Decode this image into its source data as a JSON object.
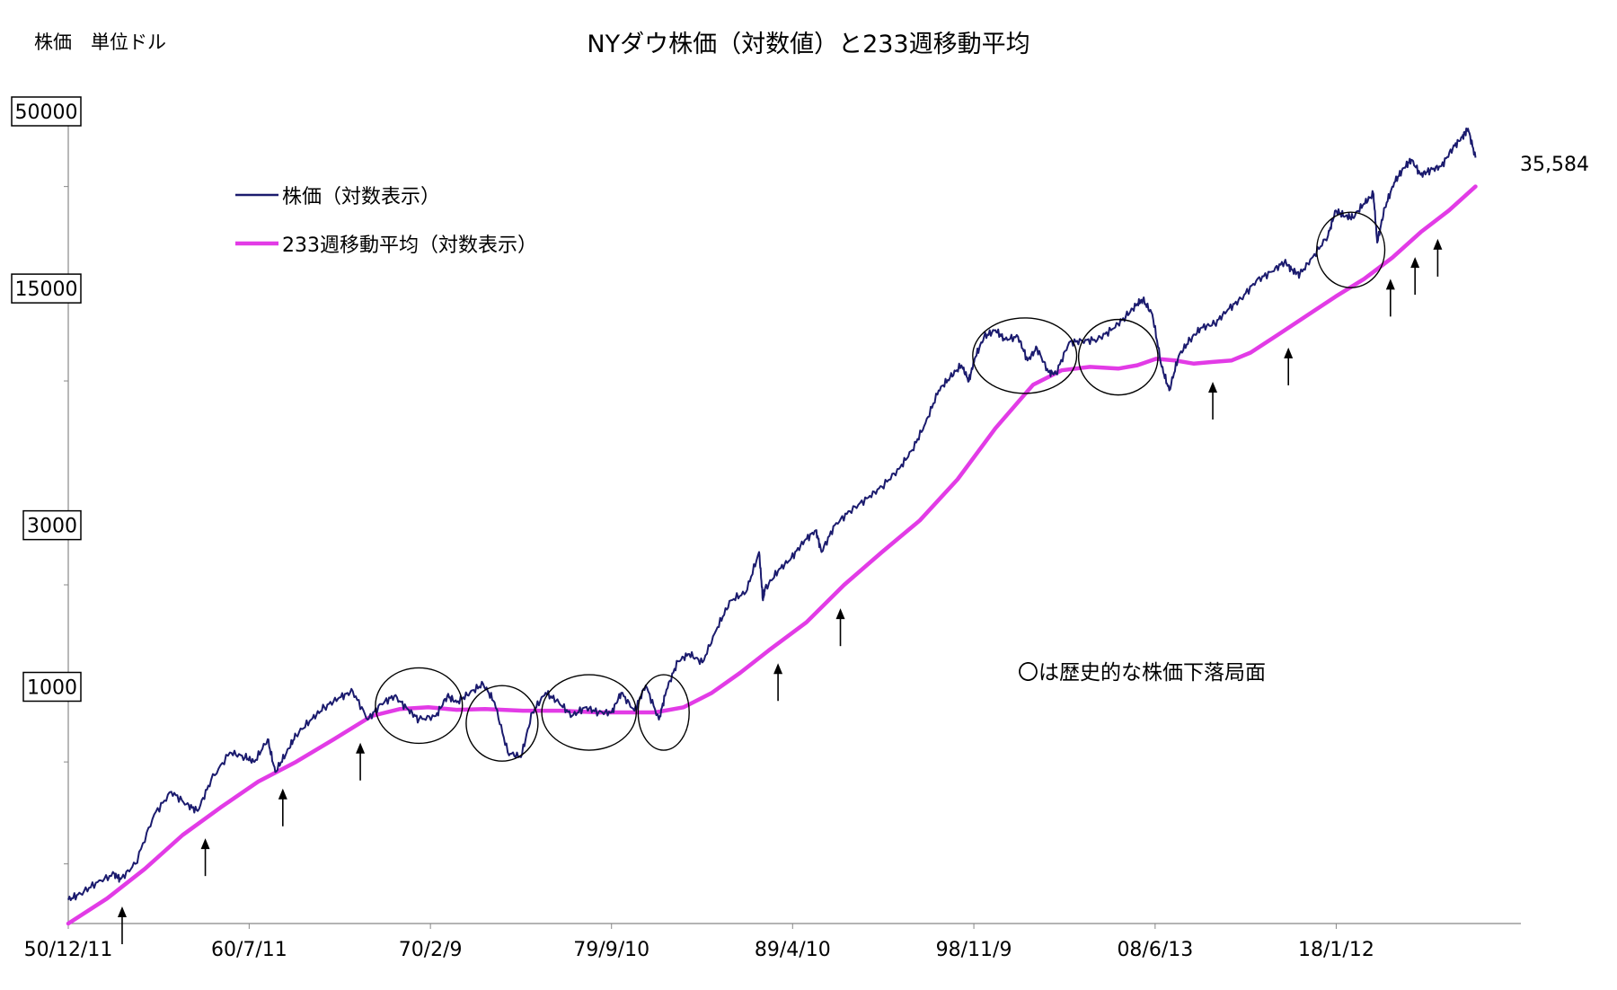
{
  "chart_data": {
    "type": "line",
    "title": "NYダウ株価（対数値）と233週移動平均",
    "ylabel": "株価　単位ドル",
    "yscale": "log",
    "ylim": [
      200,
      50000
    ],
    "y_ticks": [
      "50000",
      "15000",
      "3000",
      "1000"
    ],
    "y_tick_values": [
      50000,
      15000,
      3000,
      1000
    ],
    "x_ticks": [
      "50/12/11",
      "60/7/11",
      "70/2/9",
      "79/9/10",
      "89/4/10",
      "98/11/9",
      "08/6/13",
      "18/1/12"
    ],
    "x_tick_years": [
      1950.95,
      1960.52,
      1970.11,
      1979.69,
      1989.27,
      1998.86,
      2008.45,
      2018.03
    ],
    "xlim": [
      1950.95,
      2027.8
    ],
    "legend": {
      "placement": "top-left"
    },
    "last_value_label": "35,584",
    "annotation": "〇は歴史的な株価下落局面",
    "series": [
      {
        "name": "株価（対数表示）",
        "color": "#1b1b6e",
        "x": [
          1950.95,
          1951.6,
          1952.5,
          1953.4,
          1953.7,
          1954.5,
          1955.5,
          1956.4,
          1957.2,
          1957.8,
          1958.5,
          1959.5,
          1960.3,
          1960.8,
          1961.5,
          1961.9,
          1962.5,
          1963.0,
          1963.8,
          1964.5,
          1965.3,
          1966.0,
          1966.8,
          1967.5,
          1968.2,
          1968.9,
          1969.5,
          1970.4,
          1971.0,
          1971.5,
          1972.2,
          1972.9,
          1973.5,
          1974.2,
          1974.9,
          1975.5,
          1976.2,
          1976.9,
          1977.6,
          1978.3,
          1979.0,
          1979.7,
          1980.2,
          1980.9,
          1981.5,
          1982.2,
          1982.6,
          1983.2,
          1983.8,
          1984.5,
          1985.3,
          1986.0,
          1986.8,
          1987.5,
          1987.7,
          1987.8,
          1988.5,
          1989.2,
          1989.9,
          1990.5,
          1990.8,
          1991.5,
          1992.3,
          1993.2,
          1994.0,
          1994.9,
          1995.6,
          1996.3,
          1997.0,
          1997.6,
          1998.2,
          1998.6,
          1998.9,
          1999.4,
          2000.0,
          2000.5,
          2001.2,
          2001.7,
          2002.2,
          2002.8,
          2003.2,
          2003.9,
          2004.6,
          2005.4,
          2006.2,
          2006.9,
          2007.5,
          2007.8,
          2008.3,
          2008.8,
          2009.2,
          2009.7,
          2010.3,
          2010.9,
          2011.6,
          2012.3,
          2013.0,
          2013.8,
          2014.6,
          2015.3,
          2015.7,
          2016.1,
          2016.8,
          2017.6,
          2018.0,
          2018.5,
          2018.9,
          2019.5,
          2020.0,
          2020.2,
          2020.6,
          2021.1,
          2021.6,
          2022.0,
          2022.5,
          2023.0,
          2023.6,
          2024.2,
          2024.7,
          2025.0,
          2025.4
        ],
        "y": [
          235,
          245,
          265,
          280,
          270,
          300,
          420,
          490,
          450,
          430,
          530,
          640,
          620,
          600,
          700,
          560,
          640,
          720,
          800,
          870,
          930,
          970,
          800,
          890,
          940,
          860,
          800,
          820,
          940,
          900,
          960,
          1020,
          900,
          640,
          620,
          840,
          960,
          900,
          820,
          870,
          840,
          840,
          960,
          850,
          1010,
          800,
          980,
          1190,
          1250,
          1180,
          1500,
          1800,
          1900,
          2500,
          1800,
          1940,
          2200,
          2400,
          2700,
          2900,
          2500,
          3000,
          3300,
          3600,
          3900,
          4400,
          5000,
          6000,
          7500,
          8200,
          8900,
          8000,
          9300,
          10800,
          11300,
          10600,
          10800,
          9200,
          10000,
          8500,
          8400,
          10400,
          10500,
          10600,
          11400,
          12400,
          13500,
          13900,
          12600,
          8800,
          7500,
          9500,
          10600,
          11500,
          11800,
          13000,
          14000,
          15800,
          16800,
          18000,
          17000,
          16500,
          18600,
          21500,
          25500,
          24500,
          24300,
          26700,
          28500,
          20500,
          26000,
          30800,
          34000,
          36000,
          32500,
          33500,
          34500,
          39000,
          42000,
          44500,
          36500
        ],
        "last_value": 35584
      },
      {
        "name": "233週移動平均（対数表示）",
        "color": "#e23be6",
        "x": [
          1950.95,
          1953.0,
          1955.0,
          1957.0,
          1959.0,
          1961.0,
          1963.0,
          1965.0,
          1967.0,
          1968.5,
          1970.0,
          1971.5,
          1973.0,
          1975.0,
          1977.0,
          1979.0,
          1980.5,
          1982.0,
          1983.5,
          1985.0,
          1986.5,
          1988.0,
          1990.0,
          1992.0,
          1994.0,
          1996.0,
          1998.0,
          2000.0,
          2002.0,
          2003.5,
          2005.0,
          2006.5,
          2007.5,
          2008.5,
          2009.5,
          2010.5,
          2011.5,
          2012.5,
          2013.5,
          2015.0,
          2016.5,
          2018.0,
          2019.5,
          2021.0,
          2022.5,
          2024.0,
          2025.4
        ],
        "y": [
          200,
          237,
          290,
          365,
          440,
          525,
          600,
          700,
          820,
          860,
          870,
          855,
          860,
          850,
          850,
          840,
          840,
          840,
          870,
          960,
          1100,
          1280,
          1550,
          2000,
          2500,
          3100,
          4100,
          5800,
          7800,
          8600,
          8800,
          8700,
          8900,
          9300,
          9200,
          9000,
          9100,
          9200,
          9700,
          11000,
          12500,
          14200,
          16000,
          18500,
          22000,
          25500,
          30000
        ]
      }
    ],
    "circles": [
      {
        "x_from": 1967.2,
        "x_to": 1971.8,
        "y_center": 880
      },
      {
        "x_from": 1972.0,
        "x_to": 1975.8,
        "y_center": 780
      },
      {
        "x_from": 1976.0,
        "x_to": 1981.0,
        "y_center": 840
      },
      {
        "x_from": 1981.1,
        "x_to": 1983.8,
        "y_center": 840
      },
      {
        "x_from": 1998.8,
        "x_to": 2004.3,
        "y_center": 9500
      },
      {
        "x_from": 2004.4,
        "x_to": 2008.6,
        "y_center": 9400
      },
      {
        "x_from": 2017.0,
        "x_to": 2020.6,
        "y_center": 19500
      }
    ],
    "arrows_x": [
      1953.8,
      1958.2,
      1962.3,
      1966.4,
      1988.5,
      1991.8,
      2011.5,
      2015.5,
      2020.9,
      2022.2,
      2023.4
    ]
  }
}
